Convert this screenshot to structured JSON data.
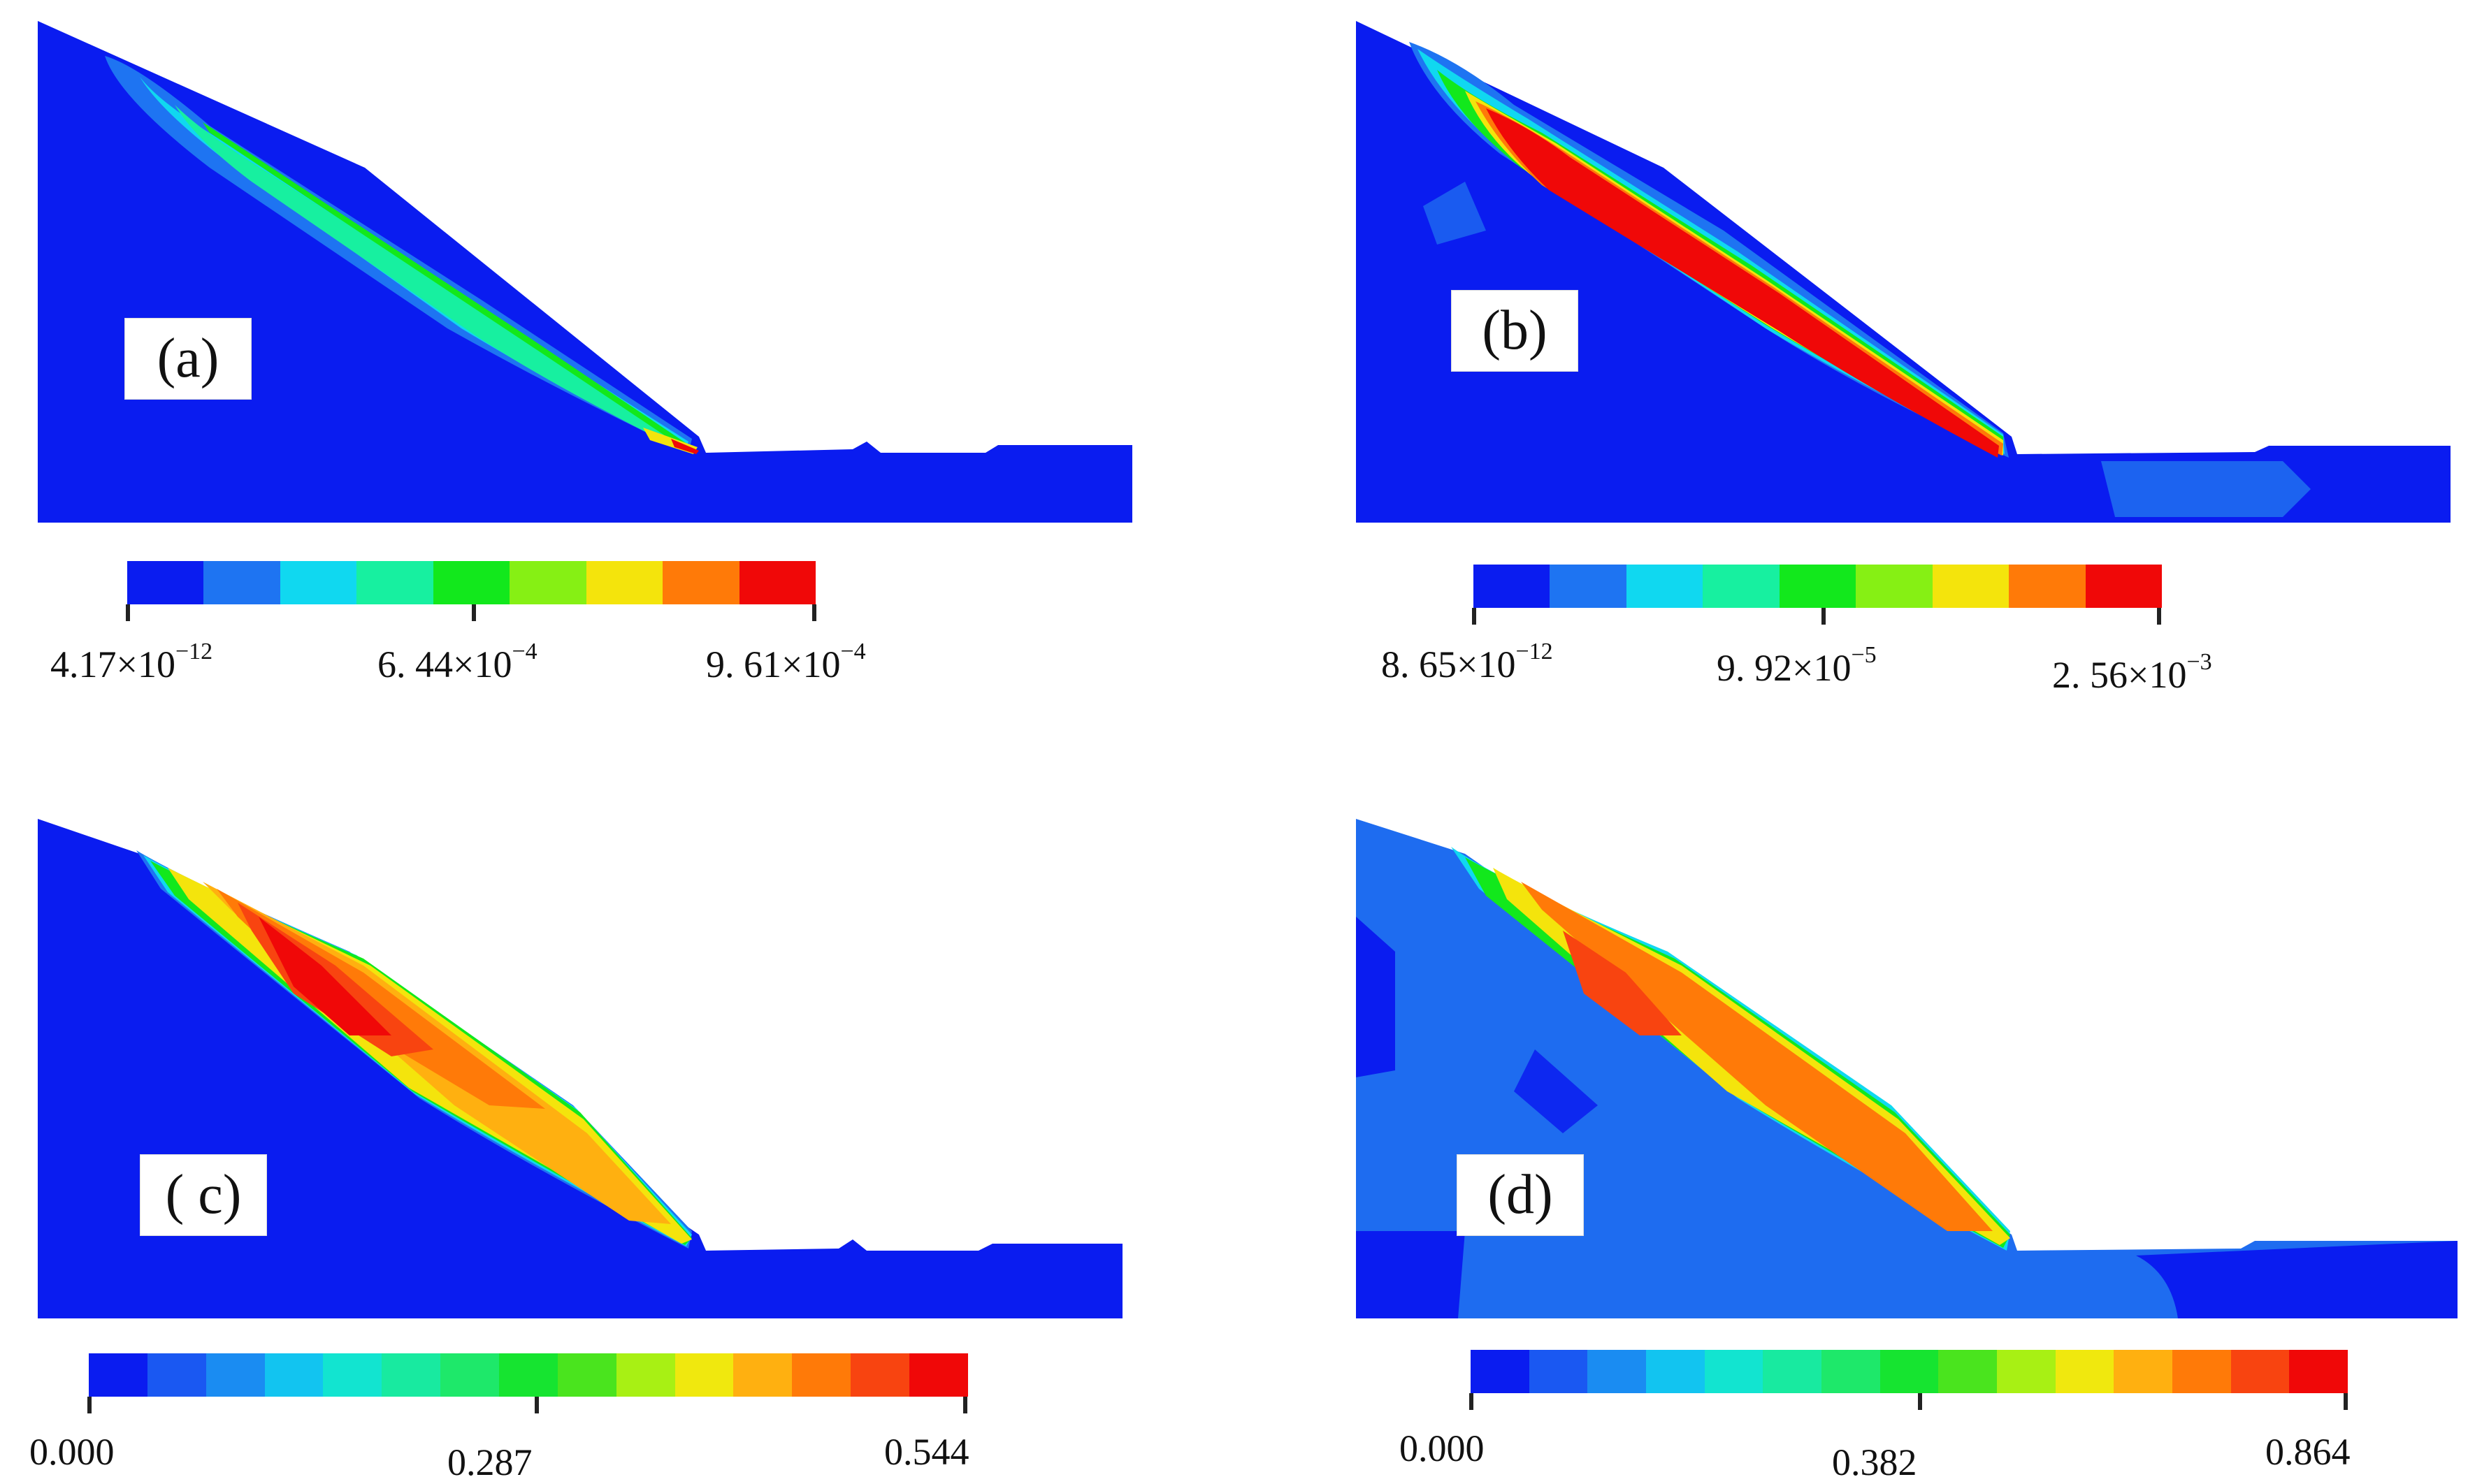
{
  "panels": [
    {
      "label": "(a)",
      "colorbar_ticks": [
        {
          "mantissa": "4.17",
          "exponent": "−12"
        },
        {
          "mantissa": "6. 44",
          "exponent": "−4"
        },
        {
          "mantissa": "9. 61",
          "exponent": "−4"
        }
      ],
      "colorbar_colors": [
        "#0a1cf0",
        "#1e74f2",
        "#10d8f0",
        "#17f0a0",
        "#12e81c",
        "#86f014",
        "#f4e40c",
        "#ff7a08",
        "#f00808"
      ]
    },
    {
      "label": "(b)",
      "colorbar_ticks": [
        {
          "mantissa": "8. 65",
          "exponent": "−12"
        },
        {
          "mantissa": "9. 92",
          "exponent": "−5"
        },
        {
          "mantissa": "2. 56",
          "exponent": "−3"
        }
      ],
      "colorbar_colors": [
        "#0a1cf0",
        "#1e74f2",
        "#10d8f0",
        "#17f0a0",
        "#12e81c",
        "#86f014",
        "#f4e40c",
        "#ff7a08",
        "#f00808"
      ]
    },
    {
      "label": "( c)",
      "colorbar_ticks": [
        {
          "value": "0.000"
        },
        {
          "value": "0.287"
        },
        {
          "value": "0.544"
        }
      ],
      "colorbar_colors": [
        "#0a1cf0",
        "#1a58f2",
        "#1a8cf2",
        "#12c4f0",
        "#12e4d0",
        "#18eaa0",
        "#1ee86a",
        "#16e430",
        "#4ae41e",
        "#a8f014",
        "#f0e80e",
        "#ffb010",
        "#ff7a08",
        "#f84410",
        "#f00808"
      ]
    },
    {
      "label": "(d)",
      "colorbar_ticks": [
        {
          "value": "0.000"
        },
        {
          "value": "0.382"
        },
        {
          "value": "0.864"
        }
      ],
      "colorbar_colors": [
        "#0a1cf0",
        "#1a58f2",
        "#1a8cf2",
        "#12c4f0",
        "#12e4d0",
        "#18eaa0",
        "#1ee86a",
        "#16e430",
        "#4ae41e",
        "#a8f014",
        "#f0e80e",
        "#ffb010",
        "#ff7a08",
        "#f84410",
        "#f00808"
      ]
    }
  ],
  "colors": {
    "background_blue": "#0a1cf0",
    "light_blue": "#1e6cf0",
    "cyan": "#10d8f0",
    "green": "#12e81c",
    "yellow": "#f4e40c",
    "orange": "#ff7a08",
    "red": "#f00808"
  }
}
